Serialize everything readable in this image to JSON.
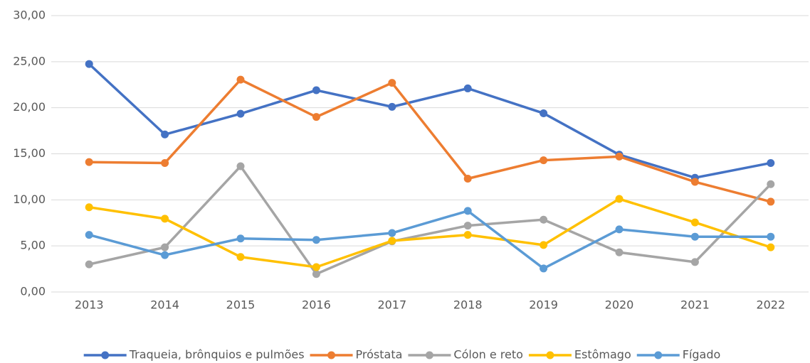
{
  "chart_data": {
    "type": "line",
    "categories": [
      "2013",
      "2014",
      "2015",
      "2016",
      "2017",
      "2018",
      "2019",
      "2020",
      "2021",
      "2022"
    ],
    "series": [
      {
        "name": "Traqueia, brônquios e pulmões",
        "color": "#4472c4",
        "values": [
          24.75,
          17.1,
          19.35,
          21.9,
          20.1,
          22.1,
          19.4,
          14.9,
          12.4,
          14.0
        ]
      },
      {
        "name": "Próstata",
        "color": "#ed7d31",
        "values": [
          14.1,
          14.0,
          23.05,
          19.0,
          22.7,
          12.3,
          14.3,
          14.7,
          11.95,
          9.8
        ]
      },
      {
        "name": "Cólon e reto",
        "color": "#a5a5a5",
        "values": [
          3.0,
          4.85,
          13.65,
          1.95,
          5.5,
          7.2,
          7.85,
          4.3,
          3.25,
          11.7
        ]
      },
      {
        "name": "Estômago",
        "color": "#ffc000",
        "values": [
          9.2,
          7.95,
          3.8,
          2.7,
          5.55,
          6.2,
          5.1,
          10.1,
          7.55,
          4.85
        ]
      },
      {
        "name": "Fígado",
        "color": "#5b9bd5",
        "values": [
          6.2,
          4.0,
          5.8,
          5.65,
          6.4,
          8.8,
          2.55,
          6.8,
          6.0,
          6.0
        ]
      }
    ],
    "ylim": [
      0,
      30
    ],
    "yticks": [
      {
        "value": 0,
        "label": "0,00"
      },
      {
        "value": 5,
        "label": "5,00"
      },
      {
        "value": 10,
        "label": "10,00"
      },
      {
        "value": 15,
        "label": "15,00"
      },
      {
        "value": 20,
        "label": "20,00"
      },
      {
        "value": 25,
        "label": "25,00"
      },
      {
        "value": 30,
        "label": "30,00"
      }
    ],
    "grid": true,
    "legend": "bottom"
  }
}
